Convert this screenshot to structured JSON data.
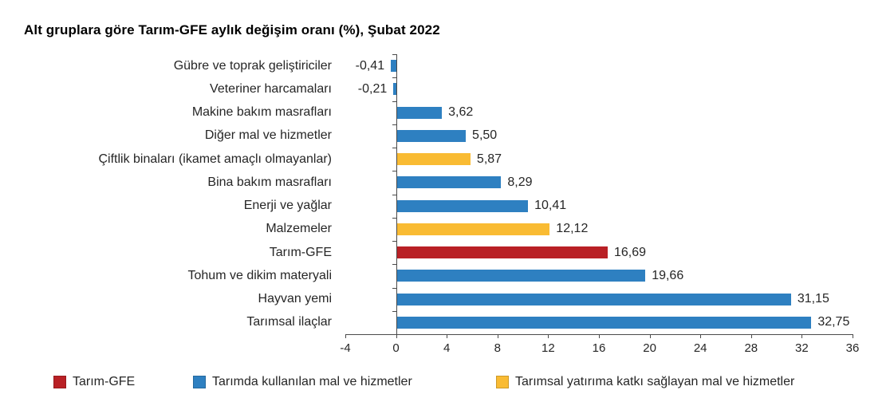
{
  "title": "Alt gruplara göre Tarım-GFE aylık değişim oranı (%), Şubat 2022",
  "chart_data": {
    "type": "bar",
    "orientation": "horizontal",
    "title": "Alt gruplara göre Tarım-GFE aylık değişim oranı (%), Şubat 2022",
    "xlabel": "",
    "ylabel": "",
    "grid": false,
    "x_axis": {
      "min": -4,
      "max": 36,
      "tick_values": [
        -4,
        0,
        4,
        8,
        12,
        16,
        20,
        24,
        28,
        32,
        36
      ],
      "tick_labels": [
        "-4",
        "0",
        "4",
        "8",
        "12",
        "16",
        "20",
        "24",
        "28",
        "32",
        "36"
      ]
    },
    "rows": [
      {
        "category": "Gübre ve toprak geliştiriciler",
        "value": -0.41,
        "value_label": "-0,41",
        "group": "used"
      },
      {
        "category": "Veteriner harcamaları",
        "value": -0.21,
        "value_label": "-0,21",
        "group": "used"
      },
      {
        "category": "Makine bakım masrafları",
        "value": 3.62,
        "value_label": "3,62",
        "group": "used"
      },
      {
        "category": "Diğer mal ve hizmetler",
        "value": 5.5,
        "value_label": "5,50",
        "group": "used"
      },
      {
        "category": "Çiftlik binaları (ikamet amaçlı olmayanlar)",
        "value": 5.87,
        "value_label": "5,87",
        "group": "investment"
      },
      {
        "category": "Bina bakım masrafları",
        "value": 8.29,
        "value_label": "8,29",
        "group": "used"
      },
      {
        "category": "Enerji ve yağlar",
        "value": 10.41,
        "value_label": "10,41",
        "group": "used"
      },
      {
        "category": "Malzemeler",
        "value": 12.12,
        "value_label": "12,12",
        "group": "investment"
      },
      {
        "category": "Tarım-GFE",
        "value": 16.69,
        "value_label": "16,69",
        "group": "gfe"
      },
      {
        "category": "Tohum ve dikim materyali",
        "value": 19.66,
        "value_label": "19,66",
        "group": "used"
      },
      {
        "category": "Hayvan yemi",
        "value": 31.15,
        "value_label": "31,15",
        "group": "used"
      },
      {
        "category": "Tarımsal ilaçlar",
        "value": 32.75,
        "value_label": "32,75",
        "group": "used"
      }
    ],
    "groups": {
      "gfe": {
        "label": "Tarım-GFE",
        "color": "#B92025"
      },
      "used": {
        "label": "Tarımda kullanılan mal ve hizmetler",
        "color": "#2E80C1"
      },
      "investment": {
        "label": "Tarımsal yatırıma katkı sağlayan mal ve hizmetler",
        "color": "#F9BB33"
      }
    },
    "legend": {
      "position": "bottom",
      "order": [
        "gfe",
        "used",
        "investment"
      ]
    }
  }
}
